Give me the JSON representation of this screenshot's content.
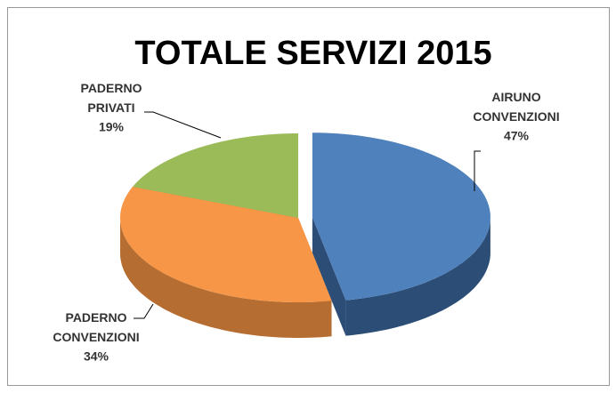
{
  "chart_data": {
    "type": "pie",
    "title": "TOTALE SERVIZI 2015",
    "categories": [
      "AIRUNO CONVENZIONI",
      "PADERNO CONVENZIONI",
      "PADERNO PRIVATI"
    ],
    "values": [
      47,
      34,
      19
    ],
    "value_labels": [
      "47%",
      "34%",
      "19%"
    ],
    "colors": [
      "#4f81bd",
      "#f79646",
      "#9bbb59"
    ],
    "side_colors": [
      "#2c4d75",
      "#b66d31",
      "#4f6228"
    ]
  }
}
